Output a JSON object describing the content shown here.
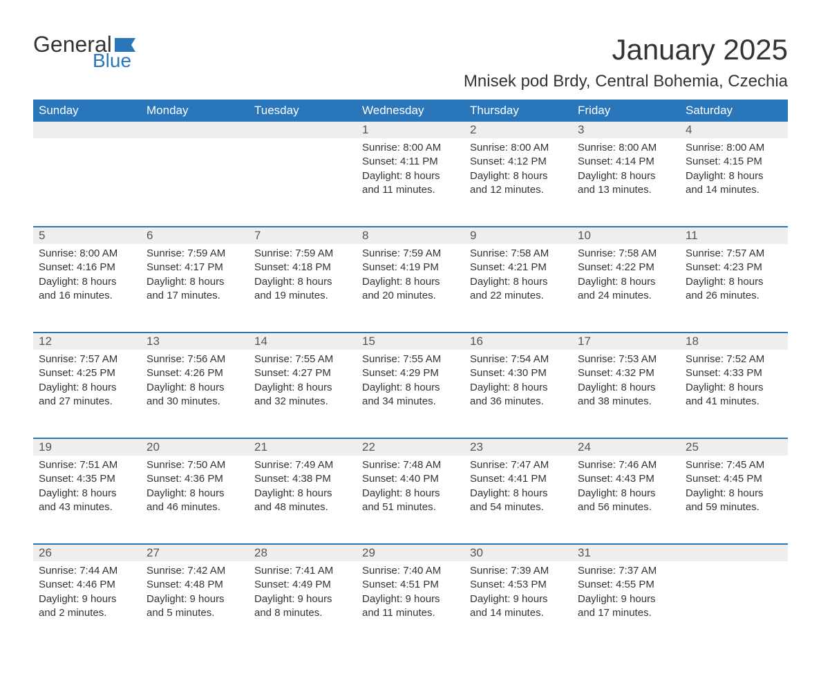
{
  "logo": {
    "text1": "General",
    "text2": "Blue",
    "flag_color": "#2a76bb"
  },
  "title": "January 2025",
  "location": "Mnisek pod Brdy, Central Bohemia, Czechia",
  "colors": {
    "header_bg": "#2a76bb",
    "header_text": "#ffffff",
    "daynum_bg": "#eeeeee",
    "daynum_border": "#2a76bb",
    "body_text": "#333333",
    "page_bg": "#ffffff"
  },
  "fonts": {
    "title_size_pt": 42,
    "location_size_pt": 24,
    "header_size_pt": 17,
    "body_size_pt": 15
  },
  "weekdays": [
    "Sunday",
    "Monday",
    "Tuesday",
    "Wednesday",
    "Thursday",
    "Friday",
    "Saturday"
  ],
  "weeks": [
    [
      null,
      null,
      null,
      {
        "n": "1",
        "sunrise": "Sunrise: 8:00 AM",
        "sunset": "Sunset: 4:11 PM",
        "daylight": "Daylight: 8 hours and 11 minutes."
      },
      {
        "n": "2",
        "sunrise": "Sunrise: 8:00 AM",
        "sunset": "Sunset: 4:12 PM",
        "daylight": "Daylight: 8 hours and 12 minutes."
      },
      {
        "n": "3",
        "sunrise": "Sunrise: 8:00 AM",
        "sunset": "Sunset: 4:14 PM",
        "daylight": "Daylight: 8 hours and 13 minutes."
      },
      {
        "n": "4",
        "sunrise": "Sunrise: 8:00 AM",
        "sunset": "Sunset: 4:15 PM",
        "daylight": "Daylight: 8 hours and 14 minutes."
      }
    ],
    [
      {
        "n": "5",
        "sunrise": "Sunrise: 8:00 AM",
        "sunset": "Sunset: 4:16 PM",
        "daylight": "Daylight: 8 hours and 16 minutes."
      },
      {
        "n": "6",
        "sunrise": "Sunrise: 7:59 AM",
        "sunset": "Sunset: 4:17 PM",
        "daylight": "Daylight: 8 hours and 17 minutes."
      },
      {
        "n": "7",
        "sunrise": "Sunrise: 7:59 AM",
        "sunset": "Sunset: 4:18 PM",
        "daylight": "Daylight: 8 hours and 19 minutes."
      },
      {
        "n": "8",
        "sunrise": "Sunrise: 7:59 AM",
        "sunset": "Sunset: 4:19 PM",
        "daylight": "Daylight: 8 hours and 20 minutes."
      },
      {
        "n": "9",
        "sunrise": "Sunrise: 7:58 AM",
        "sunset": "Sunset: 4:21 PM",
        "daylight": "Daylight: 8 hours and 22 minutes."
      },
      {
        "n": "10",
        "sunrise": "Sunrise: 7:58 AM",
        "sunset": "Sunset: 4:22 PM",
        "daylight": "Daylight: 8 hours and 24 minutes."
      },
      {
        "n": "11",
        "sunrise": "Sunrise: 7:57 AM",
        "sunset": "Sunset: 4:23 PM",
        "daylight": "Daylight: 8 hours and 26 minutes."
      }
    ],
    [
      {
        "n": "12",
        "sunrise": "Sunrise: 7:57 AM",
        "sunset": "Sunset: 4:25 PM",
        "daylight": "Daylight: 8 hours and 27 minutes."
      },
      {
        "n": "13",
        "sunrise": "Sunrise: 7:56 AM",
        "sunset": "Sunset: 4:26 PM",
        "daylight": "Daylight: 8 hours and 30 minutes."
      },
      {
        "n": "14",
        "sunrise": "Sunrise: 7:55 AM",
        "sunset": "Sunset: 4:27 PM",
        "daylight": "Daylight: 8 hours and 32 minutes."
      },
      {
        "n": "15",
        "sunrise": "Sunrise: 7:55 AM",
        "sunset": "Sunset: 4:29 PM",
        "daylight": "Daylight: 8 hours and 34 minutes."
      },
      {
        "n": "16",
        "sunrise": "Sunrise: 7:54 AM",
        "sunset": "Sunset: 4:30 PM",
        "daylight": "Daylight: 8 hours and 36 minutes."
      },
      {
        "n": "17",
        "sunrise": "Sunrise: 7:53 AM",
        "sunset": "Sunset: 4:32 PM",
        "daylight": "Daylight: 8 hours and 38 minutes."
      },
      {
        "n": "18",
        "sunrise": "Sunrise: 7:52 AM",
        "sunset": "Sunset: 4:33 PM",
        "daylight": "Daylight: 8 hours and 41 minutes."
      }
    ],
    [
      {
        "n": "19",
        "sunrise": "Sunrise: 7:51 AM",
        "sunset": "Sunset: 4:35 PM",
        "daylight": "Daylight: 8 hours and 43 minutes."
      },
      {
        "n": "20",
        "sunrise": "Sunrise: 7:50 AM",
        "sunset": "Sunset: 4:36 PM",
        "daylight": "Daylight: 8 hours and 46 minutes."
      },
      {
        "n": "21",
        "sunrise": "Sunrise: 7:49 AM",
        "sunset": "Sunset: 4:38 PM",
        "daylight": "Daylight: 8 hours and 48 minutes."
      },
      {
        "n": "22",
        "sunrise": "Sunrise: 7:48 AM",
        "sunset": "Sunset: 4:40 PM",
        "daylight": "Daylight: 8 hours and 51 minutes."
      },
      {
        "n": "23",
        "sunrise": "Sunrise: 7:47 AM",
        "sunset": "Sunset: 4:41 PM",
        "daylight": "Daylight: 8 hours and 54 minutes."
      },
      {
        "n": "24",
        "sunrise": "Sunrise: 7:46 AM",
        "sunset": "Sunset: 4:43 PM",
        "daylight": "Daylight: 8 hours and 56 minutes."
      },
      {
        "n": "25",
        "sunrise": "Sunrise: 7:45 AM",
        "sunset": "Sunset: 4:45 PM",
        "daylight": "Daylight: 8 hours and 59 minutes."
      }
    ],
    [
      {
        "n": "26",
        "sunrise": "Sunrise: 7:44 AM",
        "sunset": "Sunset: 4:46 PM",
        "daylight": "Daylight: 9 hours and 2 minutes."
      },
      {
        "n": "27",
        "sunrise": "Sunrise: 7:42 AM",
        "sunset": "Sunset: 4:48 PM",
        "daylight": "Daylight: 9 hours and 5 minutes."
      },
      {
        "n": "28",
        "sunrise": "Sunrise: 7:41 AM",
        "sunset": "Sunset: 4:49 PM",
        "daylight": "Daylight: 9 hours and 8 minutes."
      },
      {
        "n": "29",
        "sunrise": "Sunrise: 7:40 AM",
        "sunset": "Sunset: 4:51 PM",
        "daylight": "Daylight: 9 hours and 11 minutes."
      },
      {
        "n": "30",
        "sunrise": "Sunrise: 7:39 AM",
        "sunset": "Sunset: 4:53 PM",
        "daylight": "Daylight: 9 hours and 14 minutes."
      },
      {
        "n": "31",
        "sunrise": "Sunrise: 7:37 AM",
        "sunset": "Sunset: 4:55 PM",
        "daylight": "Daylight: 9 hours and 17 minutes."
      },
      null
    ]
  ]
}
